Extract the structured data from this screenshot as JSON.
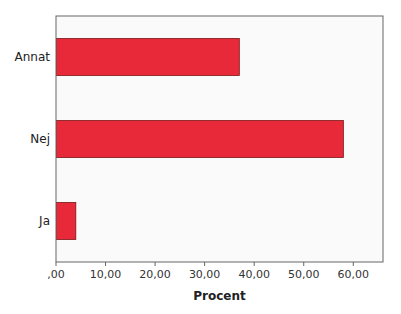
{
  "chart_data": {
    "type": "bar",
    "orientation": "horizontal",
    "categories": [
      "Annat",
      "Nej",
      "Ja"
    ],
    "values": [
      37.0,
      58.0,
      4.0
    ],
    "color": "#e8293a",
    "x_label": "Procent",
    "xlim": [
      0,
      66
    ],
    "xticks": [
      {
        "value": 0.0,
        "label": ",00"
      },
      {
        "value": 10.0,
        "label": "10,00"
      },
      {
        "value": 20.0,
        "label": "20,00"
      },
      {
        "value": 30.0,
        "label": "30,00"
      },
      {
        "value": 40.0,
        "label": "40,00"
      },
      {
        "value": 50.0,
        "label": "50,00"
      },
      {
        "value": 60.0,
        "label": "60,00"
      }
    ],
    "grid": false
  }
}
